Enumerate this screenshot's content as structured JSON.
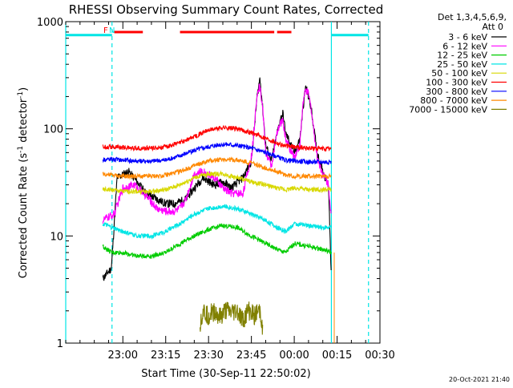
{
  "chart_data": {
    "type": "line",
    "title": "RHESSI Observing Summary Count Rates, Corrected",
    "xlabel": "Start Time (30-Sep-11 22:50:02)",
    "ylabel_main": "Corrected Count Rate (s",
    "ylabel_sup1": "-1",
    "ylabel_mid": " detector",
    "ylabel_sup2": "-1",
    "ylabel_end": ")",
    "yscale": "log",
    "ylim": [
      1,
      1000
    ],
    "xlim_minutes": [
      -10,
      100
    ],
    "x_axis_zero": "22:50",
    "x_ticks": [
      {
        "minute": 10,
        "label": "23:00"
      },
      {
        "minute": 25,
        "label": "23:15"
      },
      {
        "minute": 40,
        "label": "23:30"
      },
      {
        "minute": 55,
        "label": "23:45"
      },
      {
        "minute": 70,
        "label": "00:00"
      },
      {
        "minute": 85,
        "label": "00:15"
      },
      {
        "minute": 100,
        "label": "00:30"
      }
    ],
    "y_ticks": [
      {
        "value": 1,
        "label": "1"
      },
      {
        "value": 10,
        "label": "10"
      },
      {
        "value": 100,
        "label": "100"
      },
      {
        "value": 1000,
        "label": "1000"
      }
    ],
    "legend_header": [
      "Det 1,3,4,5,6,9,",
      "Att 0"
    ],
    "legend_position": "right",
    "series": [
      {
        "name": "3 - 6 keV",
        "color": "#000000",
        "x": [
          3,
          6,
          8,
          12,
          15,
          18,
          22,
          25,
          28,
          32,
          35,
          38,
          42,
          45,
          48,
          52,
          55,
          56,
          57,
          58,
          59,
          60,
          62,
          64,
          65,
          66,
          67,
          68,
          69,
          70,
          72,
          73,
          74,
          75,
          76,
          78,
          80,
          82,
          83
        ],
        "y": [
          4,
          5,
          35,
          40,
          32,
          25,
          22,
          20,
          20,
          22,
          28,
          35,
          30,
          32,
          28,
          35,
          50,
          100,
          200,
          300,
          150,
          70,
          50,
          90,
          120,
          140,
          90,
          80,
          70,
          60,
          80,
          150,
          250,
          200,
          150,
          60,
          40,
          30,
          4
        ]
      },
      {
        "name": "6 - 12 keV",
        "color": "#ff00ff",
        "x": [
          3,
          5,
          7,
          10,
          14,
          18,
          22,
          25,
          28,
          30,
          32,
          35,
          38,
          42,
          45,
          48,
          52,
          55,
          56,
          57,
          58,
          59,
          60,
          62,
          64,
          65,
          66,
          67,
          68,
          69,
          70,
          72,
          73,
          74,
          75,
          76,
          78,
          80,
          82,
          83
        ],
        "y": [
          14,
          15,
          16,
          28,
          30,
          24,
          18,
          17,
          17,
          18,
          22,
          38,
          40,
          35,
          28,
          25,
          25,
          55,
          100,
          220,
          250,
          150,
          60,
          45,
          90,
          110,
          120,
          80,
          70,
          60,
          55,
          70,
          170,
          230,
          210,
          150,
          55,
          38,
          30,
          15
        ]
      },
      {
        "name": "12 - 25 keV",
        "color": "#00cc00",
        "x": [
          3,
          6,
          10,
          15,
          20,
          25,
          30,
          35,
          40,
          45,
          50,
          55,
          60,
          64,
          67,
          70,
          75,
          80,
          83
        ],
        "y": [
          8,
          7,
          7,
          6.5,
          6.5,
          7,
          8.5,
          10,
          11.5,
          12.5,
          12,
          10,
          8.5,
          7.5,
          7,
          8.5,
          8,
          7.5,
          7
        ]
      },
      {
        "name": "25 - 50 keV",
        "color": "#00e5e5",
        "x": [
          3,
          6,
          10,
          15,
          20,
          25,
          30,
          35,
          40,
          45,
          50,
          55,
          60,
          64,
          67,
          70,
          75,
          80,
          83
        ],
        "y": [
          13,
          12,
          11,
          10,
          10,
          11,
          13,
          16,
          18,
          19,
          18,
          16,
          14,
          12,
          11,
          13,
          12.5,
          12,
          12
        ]
      },
      {
        "name": "50 - 100 keV",
        "color": "#d8d800",
        "x": [
          3,
          6,
          10,
          15,
          20,
          25,
          30,
          35,
          40,
          45,
          50,
          55,
          60,
          64,
          67,
          70,
          75,
          80,
          83
        ],
        "y": [
          27,
          27,
          26,
          26,
          26,
          27,
          30,
          35,
          38,
          38,
          35,
          32,
          30,
          28,
          27,
          28,
          27,
          27,
          27
        ]
      },
      {
        "name": "100 - 300 keV",
        "color": "#ff0000",
        "x": [
          3,
          6,
          10,
          15,
          20,
          25,
          30,
          35,
          40,
          45,
          50,
          55,
          60,
          64,
          67,
          70,
          75,
          80,
          83
        ],
        "y": [
          68,
          68,
          67,
          66,
          66,
          68,
          74,
          85,
          97,
          103,
          100,
          92,
          82,
          74,
          69,
          68,
          66,
          65,
          65
        ]
      },
      {
        "name": "300 - 800 keV",
        "color": "#0000ff",
        "x": [
          3,
          6,
          10,
          15,
          20,
          25,
          30,
          35,
          40,
          45,
          50,
          55,
          60,
          64,
          67,
          70,
          75,
          80,
          83
        ],
        "y": [
          52,
          52,
          51,
          50,
          50,
          51,
          56,
          63,
          68,
          72,
          70,
          66,
          60,
          55,
          51,
          50,
          49,
          49,
          49
        ]
      },
      {
        "name": "800 - 7000 keV",
        "color": "#ff8800",
        "x": [
          3,
          6,
          10,
          15,
          20,
          25,
          30,
          35,
          40,
          45,
          50,
          55,
          60,
          64,
          67,
          70,
          75,
          80,
          83
        ],
        "y": [
          38,
          37,
          36,
          36,
          36,
          37,
          40,
          45,
          50,
          52,
          51,
          48,
          43,
          40,
          37,
          36,
          36,
          36,
          36
        ]
      },
      {
        "name": "7000 - 15000 keV",
        "color": "#808000",
        "x": [
          37,
          38,
          40,
          42,
          44,
          46,
          48,
          50,
          52,
          54,
          56,
          58,
          59
        ],
        "y": [
          1.5,
          2,
          1.8,
          2,
          1.7,
          2,
          1.9,
          2,
          1.6,
          2,
          1.8,
          2,
          1.4
        ]
      }
    ],
    "annotations": {
      "flag_letters": [
        {
          "label": "F",
          "color": "#ff0000",
          "minute": 4
        },
        {
          "label": "N",
          "color": "#00e5e5",
          "minute": 6.2
        }
      ],
      "flare_bars": {
        "color": "#ff0000",
        "y": 800,
        "ranges": [
          [
            7,
            17
          ],
          [
            30,
            63
          ],
          [
            64,
            69
          ]
        ]
      },
      "night_bars": {
        "color": "#00e5e5",
        "y": 750,
        "ranges": [
          [
            -10,
            6.2
          ],
          [
            83,
            96
          ]
        ]
      },
      "night_lines": {
        "color": "#00e5e5",
        "solid": [
          -10,
          83
        ],
        "dashed": [
          6.2,
          96
        ]
      },
      "attenuator_line": {
        "color": "#ff8800",
        "minute": 84
      }
    },
    "timestamp": "20-Oct-2021 21:40"
  }
}
